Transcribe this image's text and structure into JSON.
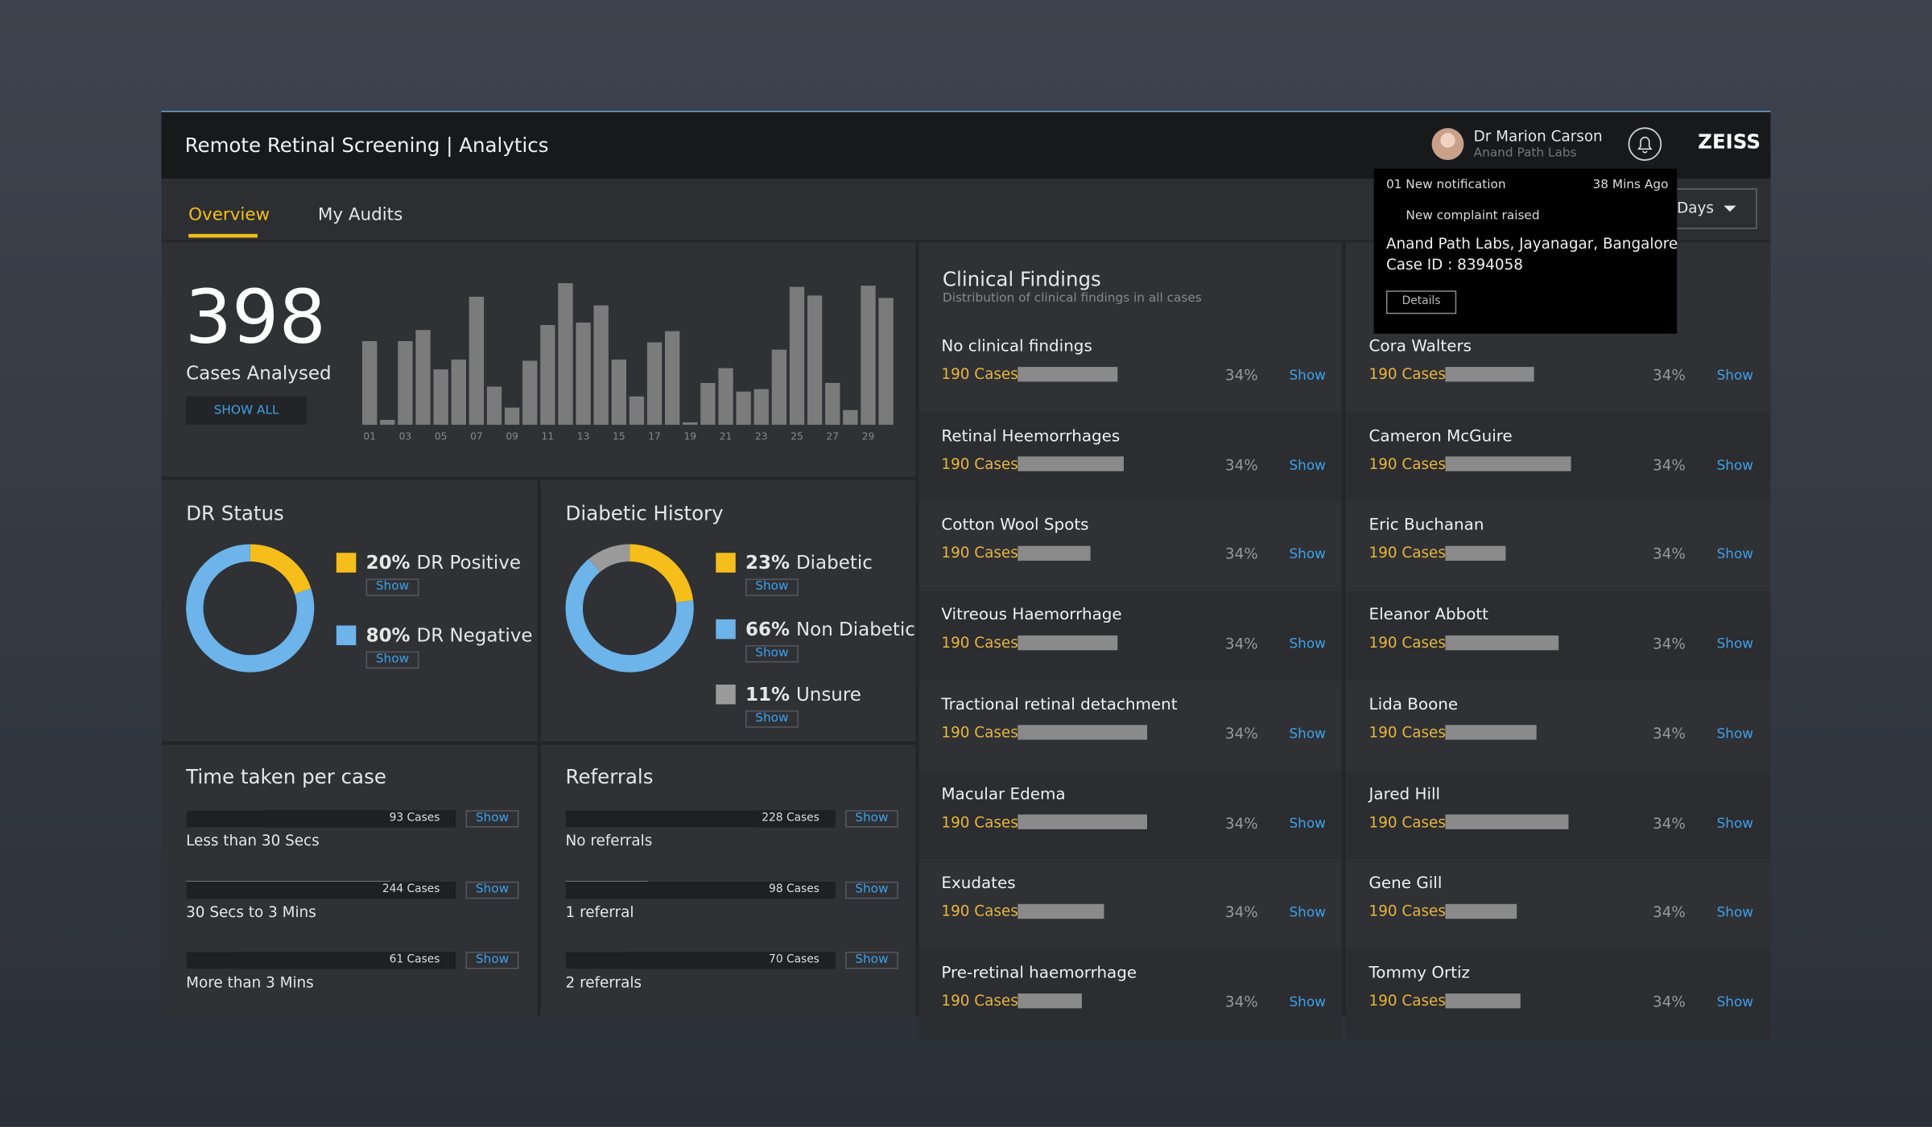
{
  "header": {
    "title": "Remote Retinal Screening | Analytics",
    "user_name": "Dr Marion Carson",
    "user_org": "Anand Path Labs",
    "brand": "ZEISS"
  },
  "tabs": [
    "Overview",
    "My Audits"
  ],
  "date_filter": "Days",
  "show_label": "Show",
  "notification": {
    "count": "01 New notification",
    "time": "38 Mins Ago",
    "alert": "New complaint raised",
    "location": "Anand Path Labs, Jayanagar, Bangalore",
    "case": "Case ID : 8394058",
    "button": "Details"
  },
  "cases": {
    "total": 398,
    "label": "Cases Analysed",
    "button": "SHOW ALL",
    "days": [
      "01",
      null,
      "03",
      null,
      "05",
      null,
      "07",
      null,
      "09",
      null,
      "11",
      null,
      "13",
      null,
      "15",
      null,
      "17",
      null,
      "19",
      null,
      "21",
      null,
      "23",
      null,
      "25",
      null,
      "27",
      null,
      "29",
      null
    ],
    "values": [
      68,
      4,
      68,
      77,
      45,
      53,
      104,
      31,
      14,
      52,
      81,
      115,
      83,
      97,
      53,
      23,
      67,
      76,
      2,
      34,
      46,
      27,
      29,
      61,
      112,
      105,
      34,
      12,
      113,
      103
    ],
    "color": "#7b7b7b"
  },
  "dr_status": {
    "title": "DR Status",
    "slices": [
      {
        "value": 20,
        "label": "20%",
        "name": "DR Positive",
        "color": "#f5be1a"
      },
      {
        "value": 80,
        "label": "80%",
        "name": "DR Negative",
        "color": "#6cb4ea"
      }
    ]
  },
  "diabetic_history": {
    "title": "Diabetic History",
    "slices": [
      {
        "value": 23,
        "label": "23%",
        "name": "Diabetic",
        "color": "#f5be1a"
      },
      {
        "value": 66,
        "label": "66%",
        "name": "Non Diabetic",
        "color": "#6cb4ea"
      },
      {
        "value": 11,
        "label": "11%",
        "name": "Unsure",
        "color": "#9a9a9a"
      }
    ]
  },
  "time_per_case": {
    "title": "Time taken per case",
    "rows": [
      {
        "label": "Less than 30 Secs",
        "value": 93,
        "value_label": "93 Cases"
      },
      {
        "label": "30 Secs to 3 Mins",
        "value": 244,
        "value_label": "244 Cases"
      },
      {
        "label": "More than 3 Mins",
        "value": 61,
        "value_label": "61 Cases"
      }
    ]
  },
  "referrals": {
    "title": "Referrals",
    "rows": [
      {
        "label": "No referrals",
        "value": 228,
        "value_label": "228 Cases"
      },
      {
        "label": "1 referral",
        "value": 98,
        "value_label": "98 Cases"
      },
      {
        "label": "2 referrals",
        "value": 70,
        "value_label": "70 Cases"
      }
    ]
  },
  "clinical_findings": {
    "title": "Clinical Findings",
    "subtitle": "Distribution of clinical findings in all cases",
    "rows": [
      {
        "name": "No clinical findings",
        "cases": 190,
        "cases_label": "190 Cases",
        "share": 34,
        "share_label": "34%",
        "bar": 81
      },
      {
        "name": "Retinal Heemorrhages",
        "cases": 190,
        "cases_label": "190 Cases",
        "share": 34,
        "share_label": "34%",
        "bar": 86
      },
      {
        "name": "Cotton Wool Spots",
        "cases": 190,
        "cases_label": "190 Cases",
        "share": 34,
        "share_label": "34%",
        "bar": 59
      },
      {
        "name": "Vitreous Haemorrhage",
        "cases": 190,
        "cases_label": "190 Cases",
        "share": 34,
        "share_label": "34%",
        "bar": 81
      },
      {
        "name": "Tractional retinal detachment",
        "cases": 190,
        "cases_label": "190 Cases",
        "share": 34,
        "share_label": "34%",
        "bar": 105
      },
      {
        "name": "Macular Edema",
        "cases": 190,
        "cases_label": "190 Cases",
        "share": 34,
        "share_label": "34%",
        "bar": 105
      },
      {
        "name": "Exudates",
        "cases": 190,
        "cases_label": "190 Cases",
        "share": 34,
        "share_label": "34%",
        "bar": 70
      },
      {
        "name": "Pre-retinal haemorrhage",
        "cases": 190,
        "cases_label": "190 Cases",
        "share": 34,
        "share_label": "34%",
        "bar": 52
      }
    ]
  },
  "graders": {
    "rows": [
      {
        "name": "Cora Walters",
        "cases": 190,
        "cases_label": "190 Cases",
        "share": 34,
        "share_label": "34%",
        "bar": 72
      },
      {
        "name": "Cameron McGuire",
        "cases": 190,
        "cases_label": "190 Cases",
        "share": 34,
        "share_label": "34%",
        "bar": 102
      },
      {
        "name": "Eric Buchanan",
        "cases": 190,
        "cases_label": "190 Cases",
        "share": 34,
        "share_label": "34%",
        "bar": 49
      },
      {
        "name": "Eleanor Abbott",
        "cases": 190,
        "cases_label": "190 Cases",
        "share": 34,
        "share_label": "34%",
        "bar": 92
      },
      {
        "name": "Lida Boone",
        "cases": 190,
        "cases_label": "190 Cases",
        "share": 34,
        "share_label": "34%",
        "bar": 74
      },
      {
        "name": "Jared Hill",
        "cases": 190,
        "cases_label": "190 Cases",
        "share": 34,
        "share_label": "34%",
        "bar": 100
      },
      {
        "name": "Gene Gill",
        "cases": 190,
        "cases_label": "190 Cases",
        "share": 34,
        "share_label": "34%",
        "bar": 58
      },
      {
        "name": "Tommy Ortiz",
        "cases": 190,
        "cases_label": "190 Cases",
        "share": 34,
        "share_label": "34%",
        "bar": 61
      }
    ]
  }
}
